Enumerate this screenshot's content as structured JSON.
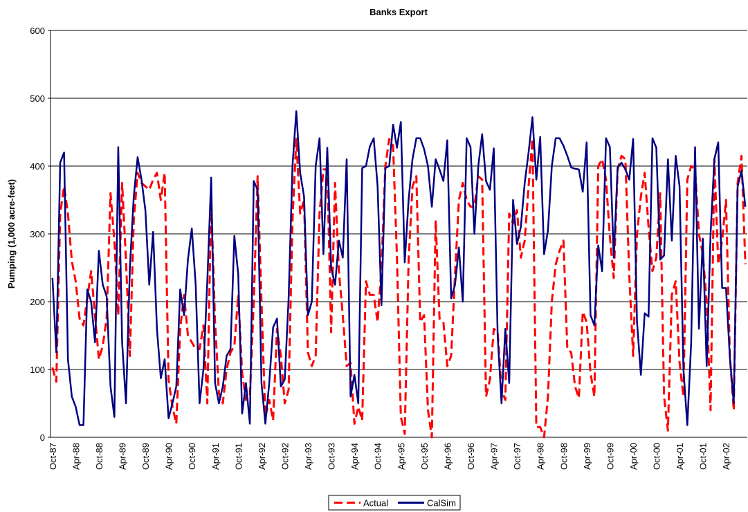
{
  "chart_data": {
    "type": "line",
    "title": "Banks Export",
    "y_label": "Pumping (1,000 acre-feet)",
    "categories": [
      "Oct-87",
      null,
      null,
      null,
      null,
      null,
      "Apr-88",
      null,
      null,
      null,
      null,
      null,
      "Oct-88",
      null,
      null,
      null,
      null,
      null,
      "Apr-89",
      null,
      null,
      null,
      null,
      null,
      "Oct-89",
      null,
      null,
      null,
      null,
      null,
      "Apr-90",
      null,
      null,
      null,
      null,
      null,
      "Oct-90",
      null,
      null,
      null,
      null,
      null,
      "Apr-91",
      null,
      null,
      null,
      null,
      null,
      "Oct-91",
      null,
      null,
      null,
      null,
      null,
      "Apr-92",
      null,
      null,
      null,
      null,
      null,
      "Oct-92",
      null,
      null,
      null,
      null,
      null,
      "Apr-93",
      null,
      null,
      null,
      null,
      null,
      "Oct-93",
      null,
      null,
      null,
      null,
      null,
      "Apr-94",
      null,
      null,
      null,
      null,
      null,
      "Oct-94",
      null,
      null,
      null,
      null,
      null,
      "Apr-95",
      null,
      null,
      null,
      null,
      null,
      "Oct-95",
      null,
      null,
      null,
      null,
      null,
      "Apr-96",
      null,
      null,
      null,
      null,
      null,
      "Oct-96",
      null,
      null,
      null,
      null,
      null,
      "Apr-97",
      null,
      null,
      null,
      null,
      null,
      "Oct-97",
      null,
      null,
      null,
      null,
      null,
      "Apr-98",
      null,
      null,
      null,
      null,
      null,
      "Oct-98",
      null,
      null,
      null,
      null,
      null,
      "Apr-99",
      null,
      null,
      null,
      null,
      null,
      "Oct-99",
      null,
      null,
      null,
      null,
      null,
      "Apr-00",
      null,
      null,
      null,
      null,
      null,
      "Oct-00",
      null,
      null,
      null,
      null,
      null,
      "Apr-01",
      null,
      null,
      null,
      null,
      null,
      "Oct-01",
      null,
      null,
      null,
      null,
      null,
      "Apr-02",
      null,
      null,
      null,
      null,
      null
    ],
    "series": [
      {
        "name": "Actual",
        "color": "#ff0000",
        "dashed": true,
        "values": [
          103,
          82,
          330,
          370,
          330,
          260,
          230,
          175,
          165,
          205,
          245,
          180,
          115,
          135,
          175,
          360,
          290,
          180,
          375,
          260,
          120,
          320,
          390,
          375,
          370,
          365,
          380,
          390,
          350,
          390,
          85,
          45,
          20,
          160,
          210,
          150,
          140,
          130,
          130,
          165,
          50,
          350,
          170,
          65,
          50,
          100,
          125,
          135,
          210,
          95,
          55,
          60,
          200,
          385,
          200,
          30,
          55,
          25,
          160,
          120,
          50,
          70,
          320,
          440,
          330,
          350,
          125,
          105,
          120,
          330,
          395,
          395,
          155,
          375,
          245,
          180,
          105,
          110,
          20,
          45,
          25,
          230,
          210,
          210,
          170,
          250,
          400,
          440,
          430,
          265,
          30,
          5,
          260,
          370,
          385,
          170,
          180,
          40,
          0,
          320,
          175,
          170,
          105,
          120,
          240,
          350,
          375,
          350,
          340,
          340,
          385,
          380,
          60,
          85,
          160,
          155,
          70,
          55,
          330,
          315,
          335,
          265,
          290,
          370,
          440,
          15,
          15,
          0,
          60,
          200,
          255,
          275,
          290,
          130,
          125,
          75,
          58,
          185,
          170,
          95,
          60,
          400,
          410,
          380,
          295,
          235,
          395,
          415,
          410,
          240,
          120,
          300,
          355,
          390,
          310,
          245,
          265,
          360,
          60,
          10,
          210,
          230,
          110,
          60,
          380,
          400,
          395,
          300,
          270,
          200,
          40,
          410,
          255,
          290,
          350,
          120,
          40,
          375,
          415,
          255
        ]
      },
      {
        "name": "CalSim",
        "color": "#000080",
        "dashed": false,
        "values": [
          235,
          125,
          405,
          420,
          115,
          60,
          45,
          18,
          18,
          218,
          200,
          140,
          275,
          225,
          208,
          75,
          30,
          428,
          140,
          50,
          250,
          355,
          413,
          380,
          335,
          225,
          303,
          160,
          87,
          115,
          28,
          50,
          75,
          218,
          180,
          262,
          308,
          225,
          50,
          100,
          230,
          383,
          80,
          50,
          75,
          120,
          130,
          297,
          240,
          35,
          80,
          20,
          378,
          365,
          80,
          20,
          80,
          162,
          175,
          75,
          85,
          205,
          400,
          481,
          390,
          355,
          180,
          200,
          400,
          441,
          270,
          427,
          250,
          225,
          290,
          265,
          410,
          60,
          92,
          50,
          397,
          400,
          429,
          441,
          370,
          195,
          397,
          400,
          461,
          427,
          465,
          258,
          350,
          410,
          441,
          441,
          425,
          400,
          340,
          410,
          395,
          378,
          438,
          205,
          225,
          280,
          200,
          441,
          428,
          300,
          400,
          447,
          378,
          365,
          426,
          150,
          50,
          160,
          80,
          350,
          285,
          310,
          375,
          420,
          472,
          380,
          443,
          270,
          305,
          400,
          441,
          441,
          430,
          415,
          398,
          396,
          395,
          362,
          435,
          180,
          165,
          283,
          245,
          441,
          428,
          265,
          398,
          405,
          395,
          380,
          440,
          170,
          92,
          183,
          178,
          441,
          427,
          262,
          268,
          410,
          290,
          415,
          370,
          100,
          18,
          140,
          428,
          160,
          293,
          105,
          300,
          410,
          435,
          220,
          220,
          118,
          50,
          370,
          393,
          340
        ]
      }
    ],
    "ylim": [
      0,
      600
    ],
    "yticks": [
      0,
      100,
      200,
      300,
      400,
      500,
      600
    ],
    "grid": true,
    "legend": "bottom"
  }
}
